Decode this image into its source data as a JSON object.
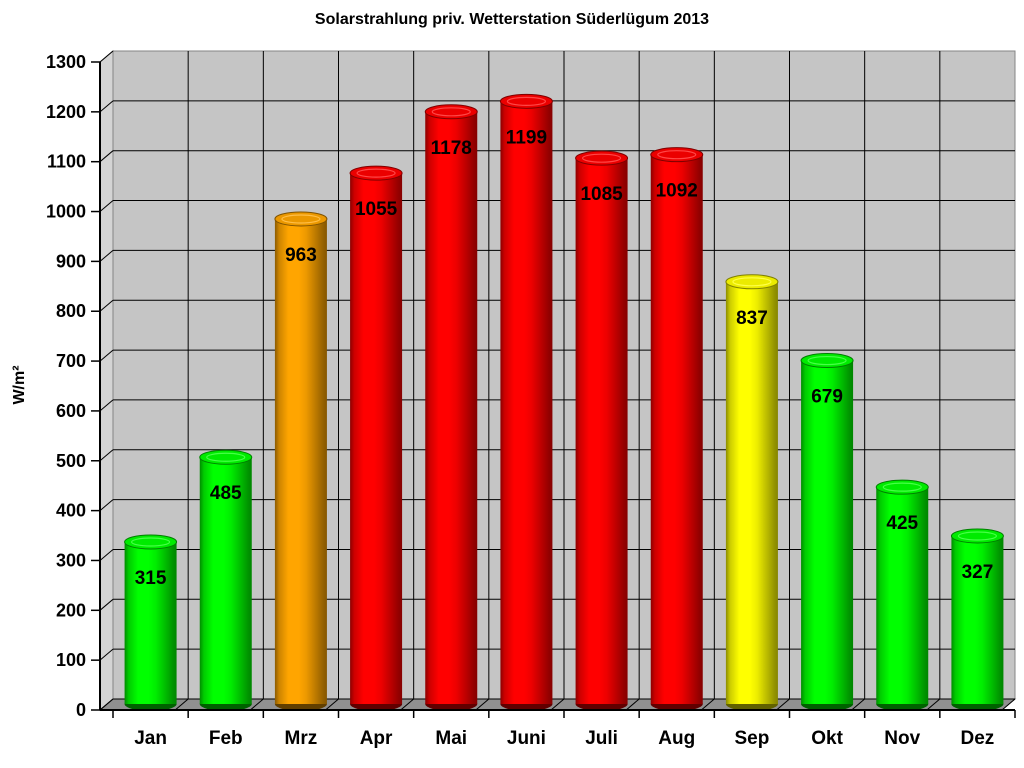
{
  "chart_data": {
    "type": "bar",
    "style": "3d-cylinder",
    "title": "Solarstrahlung priv. Wetterstation Süderlügum 2013",
    "ylabel": "W/m²",
    "xlabel": "",
    "categories": [
      "Jan",
      "Feb",
      "Mrz",
      "Apr",
      "Mai",
      "Juni",
      "Juli",
      "Aug",
      "Sep",
      "Okt",
      "Nov",
      "Dez"
    ],
    "values": [
      315,
      485,
      963,
      1055,
      1178,
      1199,
      1085,
      1092,
      837,
      679,
      425,
      327
    ],
    "bar_colors": [
      "green",
      "green",
      "orange",
      "red",
      "red",
      "red",
      "red",
      "red",
      "yellow",
      "green",
      "green",
      "green"
    ],
    "palette": {
      "green": "#00ff00",
      "orange": "#ffa500",
      "red": "#ff0000",
      "yellow": "#ffff00"
    },
    "ylim": [
      0,
      1300
    ],
    "ytick_step": 100,
    "grid": true,
    "legend": false,
    "wall_color": "#c5c5c5",
    "side_wall_color": "#d4d4d4",
    "floor_color": "#909090",
    "gridline_color": "#000000",
    "border_color": "#858585",
    "text_color": "#000000",
    "background_color": "#ffffff"
  }
}
